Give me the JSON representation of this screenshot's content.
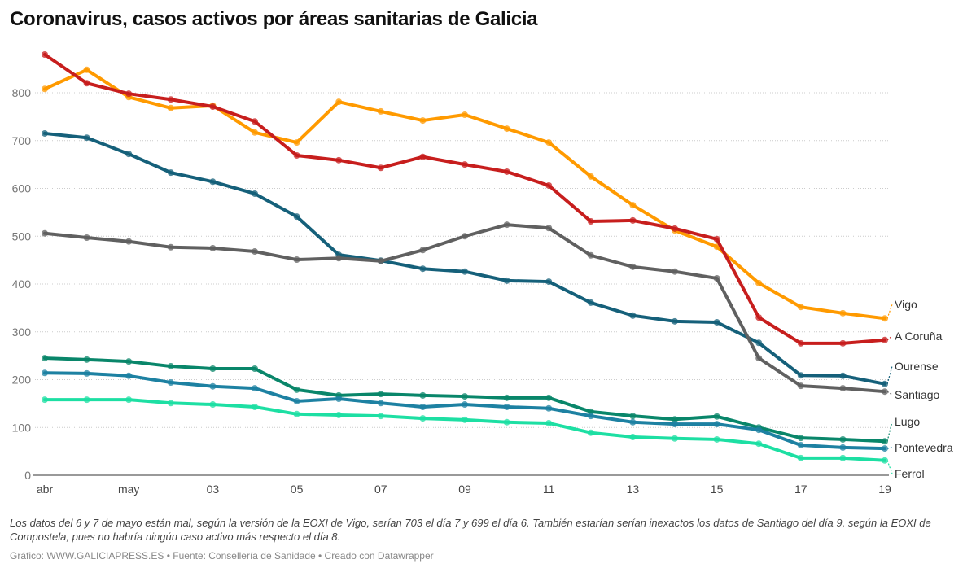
{
  "title": "Coronavirus, casos activos por áreas sanitarias de Galicia",
  "note": "Los datos del 6 y 7 de mayo están mal, según la versión de la EOXI de Vigo, serían 703 el día 7 y 699 el día 6. También estarían serían inexactos los datos de Santiago del día 9, según la EOXI de Compostela, pues no habría ningún caso activo más respecto el día 8.",
  "source": "Gráfico: WWW.GALICIAPRESS.ES • Fuente: Consellería de Sanidade • Creado con Datawrapper",
  "chart_data": {
    "type": "line",
    "title": "Coronavirus, casos activos por áreas sanitarias de Galicia",
    "x": [
      "2020-04-29",
      "2020-04-30",
      "2020-05-01",
      "2020-05-02",
      "2020-05-03",
      "2020-05-04",
      "2020-05-05",
      "2020-05-06",
      "2020-05-07",
      "2020-05-08",
      "2020-05-09",
      "2020-05-10",
      "2020-05-11",
      "2020-05-12",
      "2020-05-13",
      "2020-05-14",
      "2020-05-15",
      "2020-05-16",
      "2020-05-17",
      "2020-05-18",
      "2020-05-19"
    ],
    "xticks": [
      {
        "at": "2020-04-29",
        "label": "abr"
      },
      {
        "at": "2020-05-01",
        "label": "may"
      },
      {
        "at": "2020-05-03",
        "label": "03"
      },
      {
        "at": "2020-05-05",
        "label": "05"
      },
      {
        "at": "2020-05-07",
        "label": "07"
      },
      {
        "at": "2020-05-09",
        "label": "09"
      },
      {
        "at": "2020-05-11",
        "label": "11"
      },
      {
        "at": "2020-05-13",
        "label": "13"
      },
      {
        "at": "2020-05-15",
        "label": "15"
      },
      {
        "at": "2020-05-17",
        "label": "17"
      },
      {
        "at": "2020-05-19",
        "label": "19"
      }
    ],
    "yticks": [
      0,
      100,
      200,
      300,
      400,
      500,
      600,
      700,
      800
    ],
    "ylim": [
      0,
      900
    ],
    "grid": "horizontal dotted",
    "legend": "direct labels right",
    "series": [
      {
        "name": "Vigo",
        "color": "#ff9a00",
        "values": [
          808,
          848,
          791,
          768,
          773,
          717,
          696,
          781,
          761,
          742,
          754,
          725,
          696,
          625,
          565,
          512,
          478,
          402,
          352,
          339,
          328
        ]
      },
      {
        "name": "A Coruña",
        "color": "#c71e1d",
        "values": [
          880,
          820,
          798,
          786,
          771,
          740,
          669,
          659,
          643,
          666,
          650,
          635,
          606,
          531,
          533,
          516,
          494,
          330,
          276,
          276,
          283
        ]
      },
      {
        "name": "Ourense",
        "color": "#15607a",
        "values": [
          715,
          706,
          672,
          633,
          614,
          589,
          541,
          461,
          449,
          432,
          426,
          407,
          405,
          361,
          334,
          322,
          320,
          277,
          209,
          208,
          191
        ]
      },
      {
        "name": "Santiago",
        "color": "#606060",
        "values": [
          506,
          497,
          489,
          477,
          475,
          468,
          451,
          454,
          448,
          471,
          500,
          524,
          517,
          460,
          436,
          426,
          412,
          245,
          187,
          182,
          175
        ]
      },
      {
        "name": "Lugo",
        "color": "#09866a",
        "values": [
          245,
          242,
          238,
          228,
          223,
          223,
          179,
          167,
          170,
          167,
          165,
          162,
          162,
          133,
          124,
          117,
          123,
          100,
          78,
          75,
          71
        ]
      },
      {
        "name": "Pontevedra",
        "color": "#1d81a2",
        "values": [
          214,
          213,
          208,
          194,
          186,
          182,
          155,
          160,
          151,
          143,
          148,
          143,
          140,
          124,
          111,
          107,
          107,
          95,
          63,
          58,
          56
        ]
      },
      {
        "name": "Ferrol",
        "color": "#1ddfa3",
        "values": [
          158,
          158,
          158,
          151,
          148,
          143,
          128,
          126,
          124,
          119,
          116,
          111,
          109,
          89,
          80,
          77,
          75,
          66,
          36,
          36,
          31
        ]
      }
    ]
  }
}
